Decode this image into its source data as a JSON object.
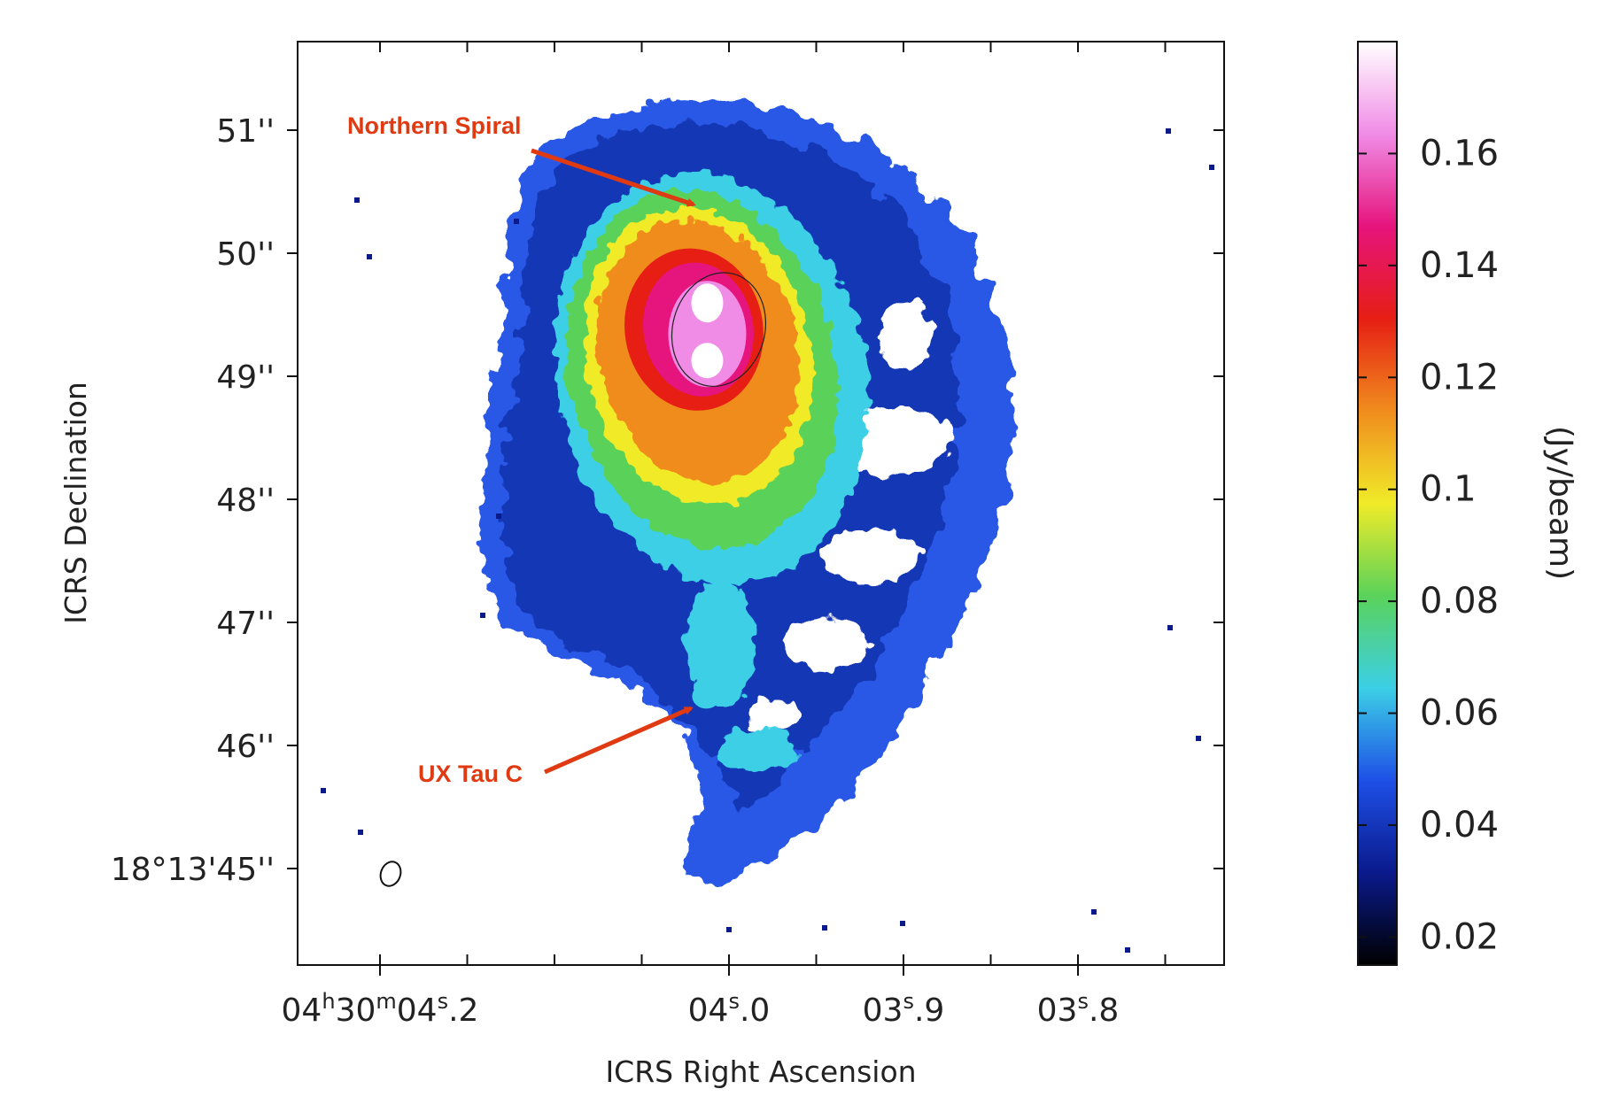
{
  "chart_data": {
    "type": "heatmap",
    "title": "",
    "xlabel": "ICRS Right Ascension",
    "ylabel": "ICRS Declination",
    "x_ticks": [
      {
        "label_h": "04",
        "label_m": "30",
        "label_s": "04",
        "label_frac": ".2",
        "value_s": 4.2
      },
      {
        "label_s": "04",
        "label_frac": ".0",
        "value_s": 4.0
      },
      {
        "label_s": "03",
        "label_frac": ".9",
        "value_s": 3.9
      },
      {
        "label_s": "03",
        "label_frac": ".8",
        "value_s": 3.8
      }
    ],
    "x_units": {
      "h": "h",
      "m": "m",
      "s": "s"
    },
    "y_ticks": [
      {
        "label": "51''",
        "value": 51
      },
      {
        "label": "50''",
        "value": 50
      },
      {
        "label": "49''",
        "value": 49
      },
      {
        "label": "48''",
        "value": 48
      },
      {
        "label": "47''",
        "value": 47
      },
      {
        "label": "46''",
        "value": 46
      },
      {
        "label": "18°13'45''",
        "value": 45
      }
    ],
    "colorbar": {
      "label": "(Jy/beam)",
      "range": [
        0.015,
        0.18
      ],
      "ticks": [
        "0.16",
        "0.14",
        "0.12",
        "0.1",
        "0.08",
        "0.06",
        "0.04",
        "0.02"
      ],
      "tick_values": [
        0.16,
        0.14,
        0.12,
        0.1,
        0.08,
        0.06,
        0.04,
        0.02
      ],
      "colors": [
        "#000000",
        "#0a1a8c",
        "#1e50e6",
        "#3ccfe6",
        "#5ad25a",
        "#f0eb28",
        "#f08c1e",
        "#e61e14",
        "#e6147d",
        "#f08ce6",
        "#ffffff"
      ]
    },
    "annotations": [
      {
        "text": "Northern Spiral"
      },
      {
        "text": "UX Tau C"
      }
    ],
    "source_center": {
      "ra_s": 4.015,
      "dec": 49.2
    }
  }
}
